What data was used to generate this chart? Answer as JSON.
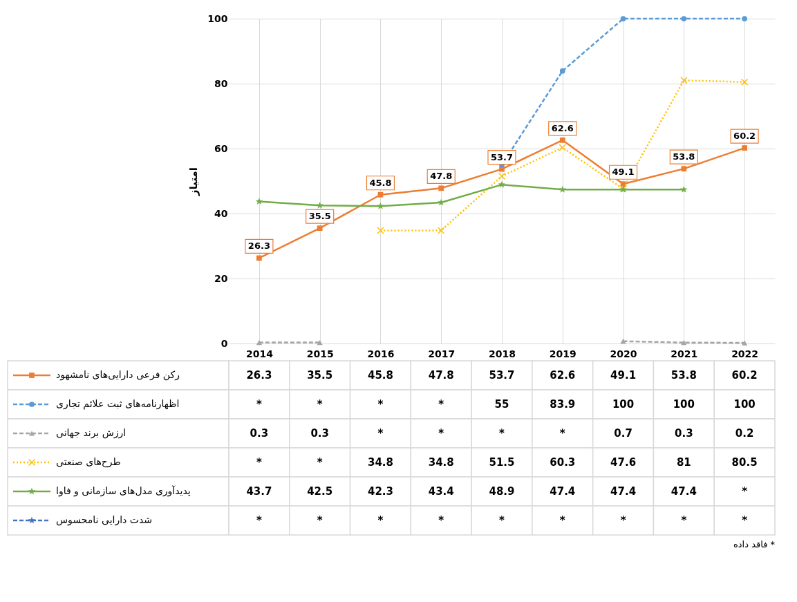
{
  "chart_data": {
    "type": "line",
    "ylabel": "امتیاز",
    "categories": [
      "2014",
      "2015",
      "2016",
      "2017",
      "2018",
      "2019",
      "2020",
      "2021",
      "2022"
    ],
    "ylim": [
      0,
      100
    ],
    "yticks": [
      0,
      20,
      40,
      60,
      80,
      100
    ],
    "grid": true,
    "legend": "bottom left",
    "annotations": [
      "فاقد داده *"
    ],
    "series": [
      {
        "name": "رکن فرعی دارایی‌های نامشهود",
        "color": "#ed7d31",
        "line_style": "solid",
        "marker": "square",
        "data_labels": true,
        "values": [
          26.3,
          35.5,
          45.8,
          47.8,
          53.7,
          62.6,
          49.1,
          53.8,
          60.2
        ],
        "value_labels": [
          "26.3",
          "35.5",
          "45.8",
          "47.8",
          "53.7",
          "62.6",
          "49.1",
          "53.8",
          "60.2"
        ]
      },
      {
        "name": "اظهارنامه‌های ثبت علائم تجاری",
        "color": "#5b9bd5",
        "line_style": "dashed",
        "marker": "circle",
        "values": [
          null,
          null,
          null,
          null,
          55,
          83.9,
          100,
          100,
          100
        ],
        "value_labels": [
          "*",
          "*",
          "*",
          "*",
          "55",
          "83.9",
          "100",
          "100",
          "100"
        ]
      },
      {
        "name": "ارزش برند جهانی",
        "color": "#a5a5a5",
        "line_style": "dashed",
        "marker": "triangle",
        "values": [
          0.3,
          0.3,
          null,
          null,
          null,
          null,
          0.7,
          0.3,
          0.2
        ],
        "value_labels": [
          "0.3",
          "0.3",
          "*",
          "*",
          "*",
          "*",
          "0.7",
          "0.3",
          "0.2"
        ]
      },
      {
        "name": "طرح‌های صنعتی",
        "color": "#ffc000",
        "line_style": "dotted",
        "marker": "cross",
        "values": [
          null,
          null,
          34.8,
          34.8,
          51.5,
          60.3,
          47.6,
          81,
          80.5
        ],
        "value_labels": [
          "*",
          "*",
          "34.8",
          "34.8",
          "51.5",
          "60.3",
          "47.6",
          "81",
          "80.5"
        ]
      },
      {
        "name": "پدیدآوری مدل‌های سازمانی و فاوا",
        "color": "#70ad47",
        "line_style": "solid",
        "marker": "star",
        "values": [
          43.7,
          42.5,
          42.3,
          43.4,
          48.9,
          47.4,
          47.4,
          47.4,
          null
        ],
        "value_labels": [
          "43.7",
          "42.5",
          "42.3",
          "43.4",
          "48.9",
          "47.4",
          "47.4",
          "47.4",
          "*"
        ]
      },
      {
        "name": "شدت دارایی نامحسوس",
        "color": "#4472c4",
        "line_style": "dashed",
        "marker": "star",
        "values": [
          null,
          null,
          null,
          null,
          null,
          null,
          null,
          null,
          null
        ],
        "value_labels": [
          "*",
          "*",
          "*",
          "*",
          "*",
          "*",
          "*",
          "*",
          "*"
        ]
      }
    ]
  }
}
